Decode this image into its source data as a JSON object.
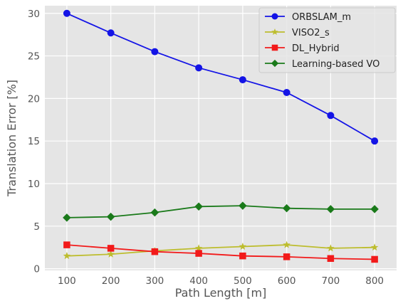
{
  "chart_data": {
    "type": "line",
    "title": "",
    "xlabel": "Path Length [m]",
    "ylabel": "Translation Error [%]",
    "x": [
      100,
      200,
      300,
      400,
      500,
      600,
      700,
      800
    ],
    "xlim": [
      50,
      850
    ],
    "ylim": [
      -0.2,
      30.9
    ],
    "xticks": [
      100,
      200,
      300,
      400,
      500,
      600,
      700,
      800
    ],
    "yticks": [
      0,
      5,
      10,
      15,
      20,
      25,
      30
    ],
    "grid": true,
    "legend_position": "top-right",
    "background_color": "#e5e5e5",
    "series": [
      {
        "name": "ORBSLAM_m",
        "color": "#1414e6",
        "marker": "circle",
        "values": [
          30.0,
          27.7,
          25.5,
          23.6,
          22.2,
          20.7,
          18.0,
          15.0
        ]
      },
      {
        "name": "VISO2_s",
        "color": "#bdbd2e",
        "marker": "star",
        "values": [
          1.5,
          1.7,
          2.1,
          2.4,
          2.6,
          2.8,
          2.4,
          2.5
        ]
      },
      {
        "name": "DL_Hybrid",
        "color": "#f21a1a",
        "marker": "square",
        "values": [
          2.8,
          2.4,
          2.0,
          1.8,
          1.5,
          1.4,
          1.2,
          1.1
        ]
      },
      {
        "name": "Learning-based VO",
        "color": "#1a7a1a",
        "marker": "diamond",
        "values": [
          6.0,
          6.1,
          6.6,
          7.3,
          7.4,
          7.1,
          7.0,
          7.0
        ]
      }
    ]
  }
}
